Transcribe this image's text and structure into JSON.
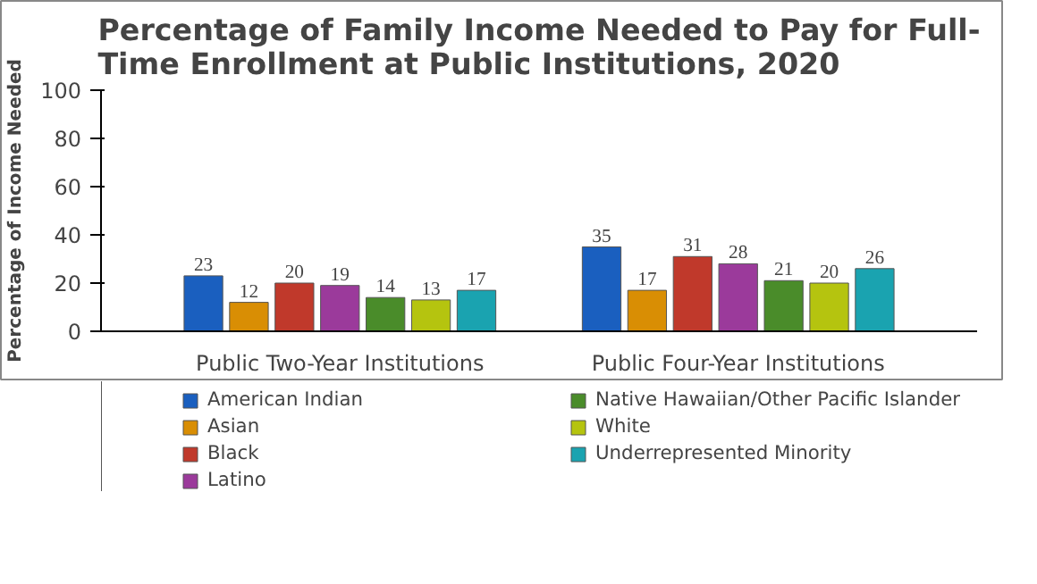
{
  "chart_data": {
    "type": "bar",
    "title": "Percentage of Family Income Needed to Pay for Full-Time Enrollment at Public Institutions, 2020",
    "ylabel": "Percentage of Income Needed",
    "categories": [
      "Public Two-Year Institutions",
      "Public Four-Year Institutions"
    ],
    "series": [
      {
        "name": "American Indian",
        "color": "#1a5fbf",
        "values": [
          23,
          35
        ]
      },
      {
        "name": "Asian",
        "color": "#d98e04",
        "values": [
          12,
          17
        ]
      },
      {
        "name": "Black",
        "color": "#c0392b",
        "values": [
          20,
          31
        ]
      },
      {
        "name": "Latino",
        "color": "#9b3a9b",
        "values": [
          19,
          28
        ]
      },
      {
        "name": "Native Hawaiian/Other Pacific Islander",
        "color": "#4a8c2a",
        "values": [
          14,
          21
        ]
      },
      {
        "name": "White",
        "color": "#b5c40f",
        "values": [
          13,
          20
        ]
      },
      {
        "name": "Underrepresented Minority",
        "color": "#1aa3b0",
        "values": [
          17,
          26
        ]
      }
    ],
    "ylim": [
      0,
      100
    ],
    "yticks": [
      0,
      20,
      40,
      60,
      80,
      100
    ],
    "data_labels": true,
    "legend": "bottom",
    "grid": false
  }
}
